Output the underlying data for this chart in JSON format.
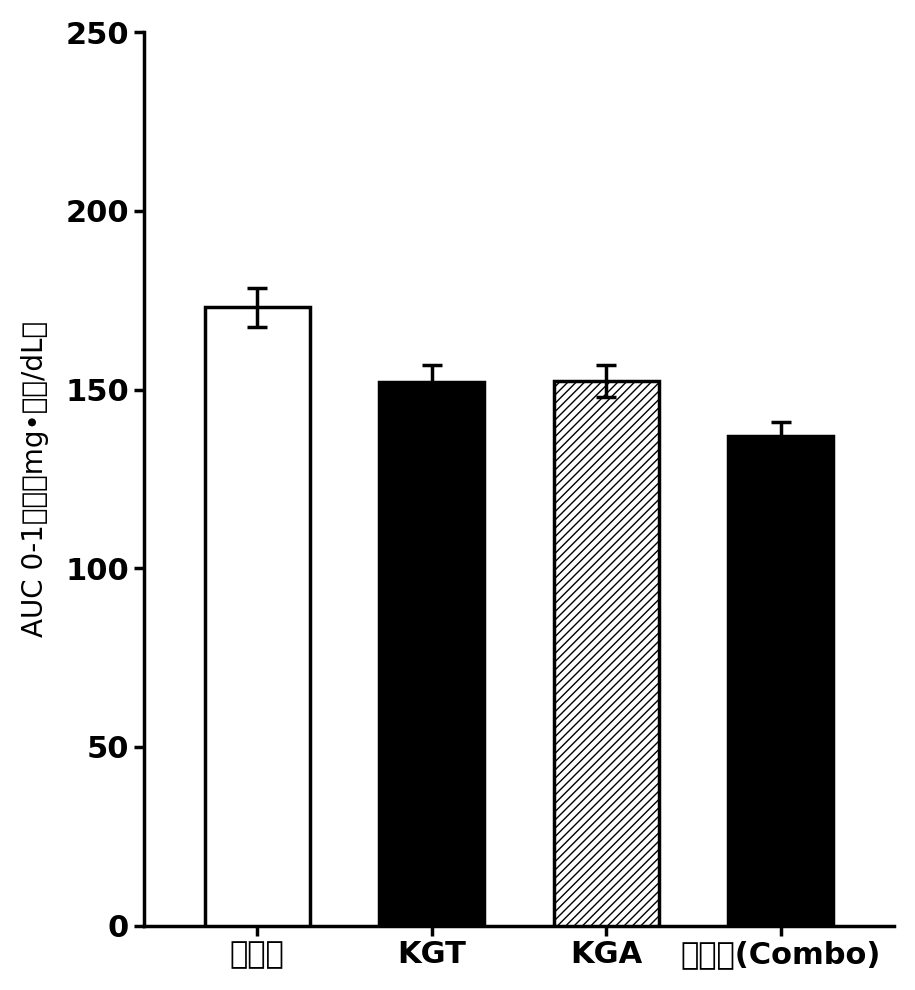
{
  "categories": [
    "媒介物",
    "KGT",
    "KGA",
    "组合物(Combo)"
  ],
  "values": [
    173.0,
    152.0,
    152.5,
    137.0
  ],
  "errors": [
    5.5,
    5.0,
    4.5,
    4.0
  ],
  "bar_styles": [
    "white",
    "black",
    "hatch",
    "black"
  ],
  "hatch_pattern": "////",
  "ylabel_line1": "AUC 0-1小时",
  "ylabel_line2": "(mg•小时/dL)",
  "ylim": [
    0,
    250
  ],
  "yticks": [
    0,
    50,
    100,
    150,
    200,
    250
  ],
  "bar_width": 0.6,
  "bar_edge_color": "#000000",
  "background_color": "#ffffff",
  "axis_linewidth": 2.5,
  "tick_fontsize": 22,
  "label_fontsize": 20,
  "xlabel_fontsize": 22
}
